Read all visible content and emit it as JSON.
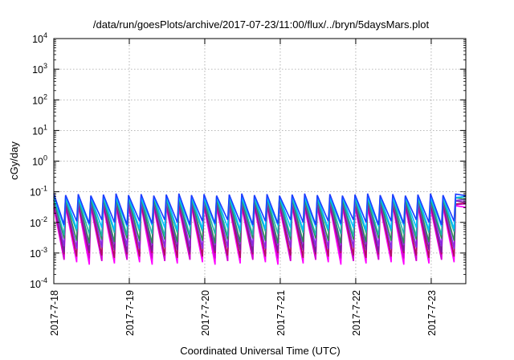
{
  "chart_data": {
    "type": "line",
    "title": "/data/run/goesPlots/archive/2017-07-23/11:00/flux/../bryn/5daysMars.plot",
    "xlabel": "Coordinated Universal Time (UTC)",
    "ylabel": "cGy/day",
    "yscale": "log",
    "ylim": [
      0.0001,
      10000
    ],
    "xlim": [
      "2017-07-18",
      "2017-07-23 11:00"
    ],
    "x_ticks": [
      "2017-7-18",
      "2017-7-19",
      "2017-7-20",
      "2017-7-21",
      "2017-7-22",
      "2017-7-23"
    ],
    "y_ticks": [
      {
        "base": "10",
        "exp": "-4"
      },
      {
        "base": "10",
        "exp": "-3"
      },
      {
        "base": "10",
        "exp": "-2"
      },
      {
        "base": "10",
        "exp": "-1"
      },
      {
        "base": "10",
        "exp": "0"
      },
      {
        "base": "10",
        "exp": "1"
      },
      {
        "base": "10",
        "exp": "2"
      },
      {
        "base": "10",
        "exp": "3"
      },
      {
        "base": "10",
        "exp": "4"
      }
    ],
    "grid": true,
    "legend": "none",
    "cycles_per_day": 6,
    "series": [
      {
        "color": "#ff00ff",
        "peak": 0.03,
        "trough": 0.0006
      },
      {
        "color": "#d000d0",
        "peak": 0.035,
        "trough": 0.0008
      },
      {
        "color": "#b01060",
        "peak": 0.04,
        "trough": 0.001
      },
      {
        "color": "#7a1fa0",
        "peak": 0.045,
        "trough": 0.0015
      },
      {
        "color": "#8a2be2",
        "peak": 0.05,
        "trough": 0.002
      },
      {
        "color": "#2e8b57",
        "peak": 0.055,
        "trough": 0.003
      },
      {
        "color": "#20b2aa",
        "peak": 0.06,
        "trough": 0.005
      },
      {
        "color": "#00bfff",
        "peak": 0.065,
        "trough": 0.008
      },
      {
        "color": "#1e3cff",
        "peak": 0.075,
        "trough": 0.012
      }
    ]
  }
}
